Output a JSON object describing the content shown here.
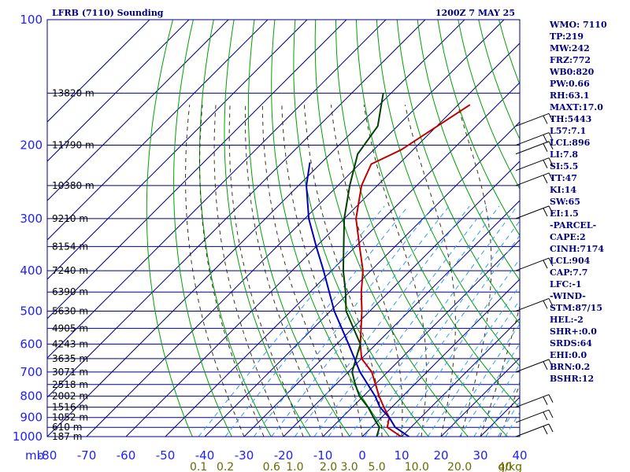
{
  "chart_data": {
    "type": "line",
    "chart_kind": "skew-T log-P sounding",
    "title": "LFRB (7110) Sounding",
    "valid_time": "1200Z  7 MAY 25",
    "pressure_unit_label": "mb",
    "pressure_axis": {
      "scale": "log",
      "range": [
        100,
        1000
      ],
      "ticks": [
        100,
        200,
        300,
        400,
        500,
        600,
        700,
        800,
        900,
        1000
      ]
    },
    "temperature_axis": {
      "unit": "C",
      "range": [
        -80,
        40
      ],
      "ticks": [
        -80,
        -70,
        -60,
        -50,
        -40,
        -30,
        -20,
        -10,
        0,
        10,
        20,
        30,
        40
      ]
    },
    "tick_labels_temperature": [
      "-80",
      "-70",
      "-60",
      "-50",
      "-40",
      "-30",
      "-20",
      "-10",
      "0",
      "10",
      "20",
      "30",
      "40"
    ],
    "mixing_ratio_label": "g/kg",
    "mixing_ratio_ticks": [
      {
        "label": "0.1",
        "value": 0.1
      },
      {
        "label": "0.2",
        "value": 0.2
      },
      {
        "label": "0.6",
        "value": 0.6
      },
      {
        "label": "1.0",
        "value": 1.0
      },
      {
        "label": "2.0",
        "value": 2.0
      },
      {
        "label": "3.0",
        "value": 3.0
      },
      {
        "label": "5.0",
        "value": 5.0
      },
      {
        "label": "10.0",
        "value": 10.0
      },
      {
        "label": "20.0",
        "value": 20.0
      },
      {
        "label": "40",
        "value": 40.0
      }
    ],
    "height_labels": [
      {
        "p": 150,
        "label": "13820 m"
      },
      {
        "p": 200,
        "label": "11790 m"
      },
      {
        "p": 250,
        "label": "10380 m"
      },
      {
        "p": 300,
        "label": "9210 m"
      },
      {
        "p": 350,
        "label": "8154 m"
      },
      {
        "p": 400,
        "label": "7240 m"
      },
      {
        "p": 450,
        "label": "6390 m"
      },
      {
        "p": 500,
        "label": "5630 m"
      },
      {
        "p": 550,
        "label": "4905 m"
      },
      {
        "p": 600,
        "label": "4243 m"
      },
      {
        "p": 650,
        "label": "3635 m"
      },
      {
        "p": 700,
        "label": "3071 m"
      },
      {
        "p": 750,
        "label": "2518 m"
      },
      {
        "p": 800,
        "label": "2002 m"
      },
      {
        "p": 850,
        "label": "1516 m"
      },
      {
        "p": 900,
        "label": "1052 m"
      },
      {
        "p": 950,
        "label": "610 m"
      },
      {
        "p": 1000,
        "label": "187 m"
      }
    ],
    "series": [
      {
        "color": "#c00000",
        "role": "temperature",
        "points": [
          [
            1010,
            11
          ],
          [
            950,
            4
          ],
          [
            900,
            2
          ],
          [
            850,
            -2
          ],
          [
            800,
            -6
          ],
          [
            700,
            -14
          ],
          [
            650,
            -20
          ],
          [
            600,
            -24
          ],
          [
            500,
            -32
          ],
          [
            450,
            -37
          ],
          [
            400,
            -42
          ],
          [
            350,
            -49
          ],
          [
            300,
            -57
          ],
          [
            250,
            -64
          ],
          [
            222,
            -67
          ],
          [
            205,
            -63
          ],
          [
            160,
            -57
          ]
        ]
      },
      {
        "color": "#004000",
        "role": "dewpoint",
        "points": [
          [
            1010,
            4
          ],
          [
            950,
            2
          ],
          [
            900,
            -2
          ],
          [
            850,
            -6
          ],
          [
            800,
            -11
          ],
          [
            750,
            -15
          ],
          [
            700,
            -19
          ],
          [
            600,
            -24
          ],
          [
            500,
            -36
          ],
          [
            450,
            -41
          ],
          [
            400,
            -47
          ],
          [
            300,
            -60
          ],
          [
            250,
            -67
          ],
          [
            210,
            -73
          ],
          [
            180,
            -75
          ],
          [
            150,
            -82
          ]
        ]
      },
      {
        "color": "#0000b0",
        "role": "parcel",
        "points": [
          [
            1010,
            13
          ],
          [
            950,
            6
          ],
          [
            900,
            2
          ],
          [
            850,
            -3
          ],
          [
            800,
            -7
          ],
          [
            700,
            -17
          ],
          [
            600,
            -27
          ],
          [
            500,
            -39
          ],
          [
            400,
            -52
          ],
          [
            350,
            -60
          ],
          [
            300,
            -69
          ],
          [
            250,
            -78
          ],
          [
            220,
            -83
          ]
        ]
      }
    ],
    "wind_barb_levels": [
      1000,
      925,
      850,
      700,
      500,
      400,
      300,
      250,
      230,
      210,
      200,
      180
    ],
    "grid": true
  },
  "indices": [
    "WMO: 7110",
    "TP:219",
    "MW:242",
    "FRZ:772",
    "WB0:820",
    "PW:0.66",
    "RH:63.1",
    "MAXT:17.0",
    "TH:5443",
    "L57:7.1",
    "LCL:896",
    "LI:7.8",
    "SI:5.5",
    "TT:47",
    "KI:14",
    "SW:65",
    "EI:1.5",
    "-PARCEL-",
    "CAPE:2",
    "CINH:7174",
    "LCL:904",
    "CAP:7.7",
    "LFC:-1",
    "-WIND-",
    "STM:87/15",
    "HEL:-2",
    "SHR+:0.0",
    "SRDS:64",
    "EHI:0.0",
    "BRN:0.2",
    "BSHR:12"
  ],
  "colors": {
    "frame": "#000080",
    "isotherm": "#000080",
    "dry_adiabat": "#00a000",
    "moist_adiabat": "#202000",
    "mixing_ratio": "#3399ff",
    "label_blue": "#2020ff",
    "mixing_label": "#6b6b00"
  }
}
